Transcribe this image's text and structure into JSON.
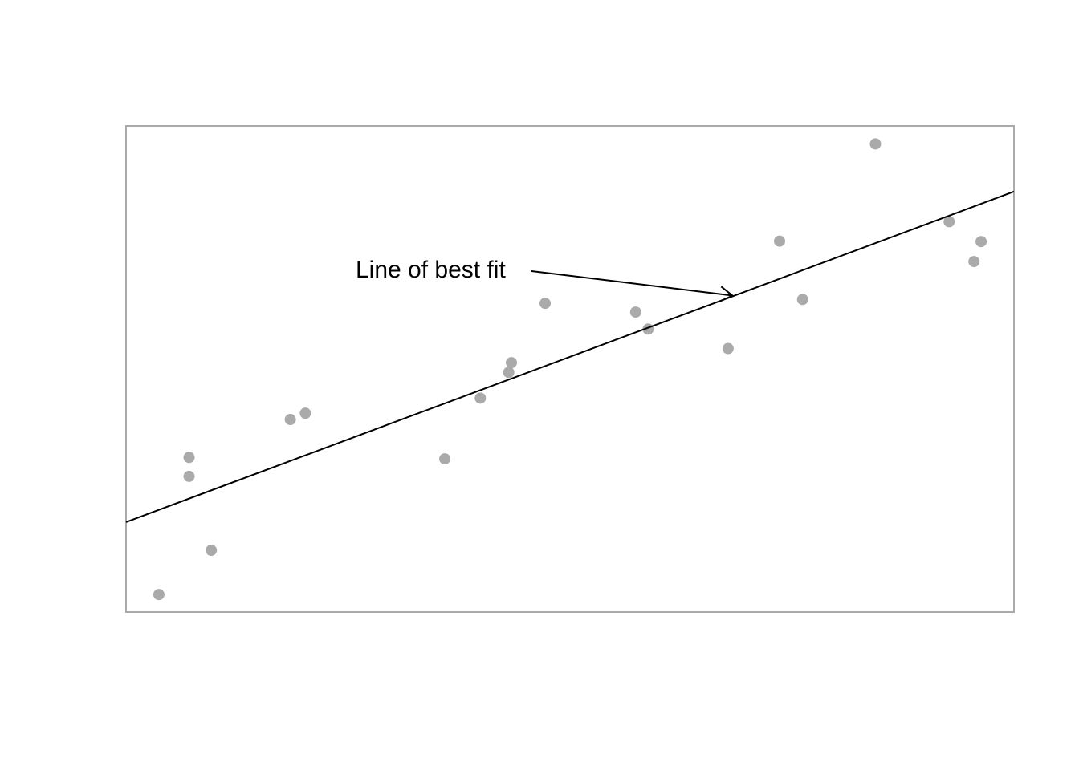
{
  "chart_data": {
    "type": "scatter",
    "title": "",
    "xlabel": "",
    "ylabel": "",
    "xlim": [
      0,
      100
    ],
    "ylim": [
      0,
      100
    ],
    "grid": false,
    "axes_ticks": false,
    "colors": {
      "points": "#aaaaaa",
      "line": "#000000",
      "frame": "#aaaaaa"
    },
    "points": [
      {
        "x": 3.7,
        "y": 3.6
      },
      {
        "x": 7.1,
        "y": 27.9
      },
      {
        "x": 7.1,
        "y": 31.8
      },
      {
        "x": 9.6,
        "y": 12.7
      },
      {
        "x": 18.5,
        "y": 39.6
      },
      {
        "x": 20.2,
        "y": 40.9
      },
      {
        "x": 35.9,
        "y": 31.5
      },
      {
        "x": 39.9,
        "y": 44.0
      },
      {
        "x": 43.1,
        "y": 49.3
      },
      {
        "x": 43.4,
        "y": 51.3
      },
      {
        "x": 47.2,
        "y": 63.5
      },
      {
        "x": 57.4,
        "y": 61.7
      },
      {
        "x": 58.8,
        "y": 58.2
      },
      {
        "x": 67.8,
        "y": 54.2
      },
      {
        "x": 73.6,
        "y": 76.3
      },
      {
        "x": 76.2,
        "y": 64.3
      },
      {
        "x": 84.4,
        "y": 96.3
      },
      {
        "x": 92.7,
        "y": 80.3
      },
      {
        "x": 95.5,
        "y": 72.1
      },
      {
        "x": 96.3,
        "y": 76.2
      }
    ],
    "fit_line": {
      "slope": 0.68,
      "intercept": 18.5
    },
    "annotation": {
      "text": "Line of best fit",
      "arrow_to": {
        "x": 68.3,
        "y": 65.1
      }
    }
  }
}
